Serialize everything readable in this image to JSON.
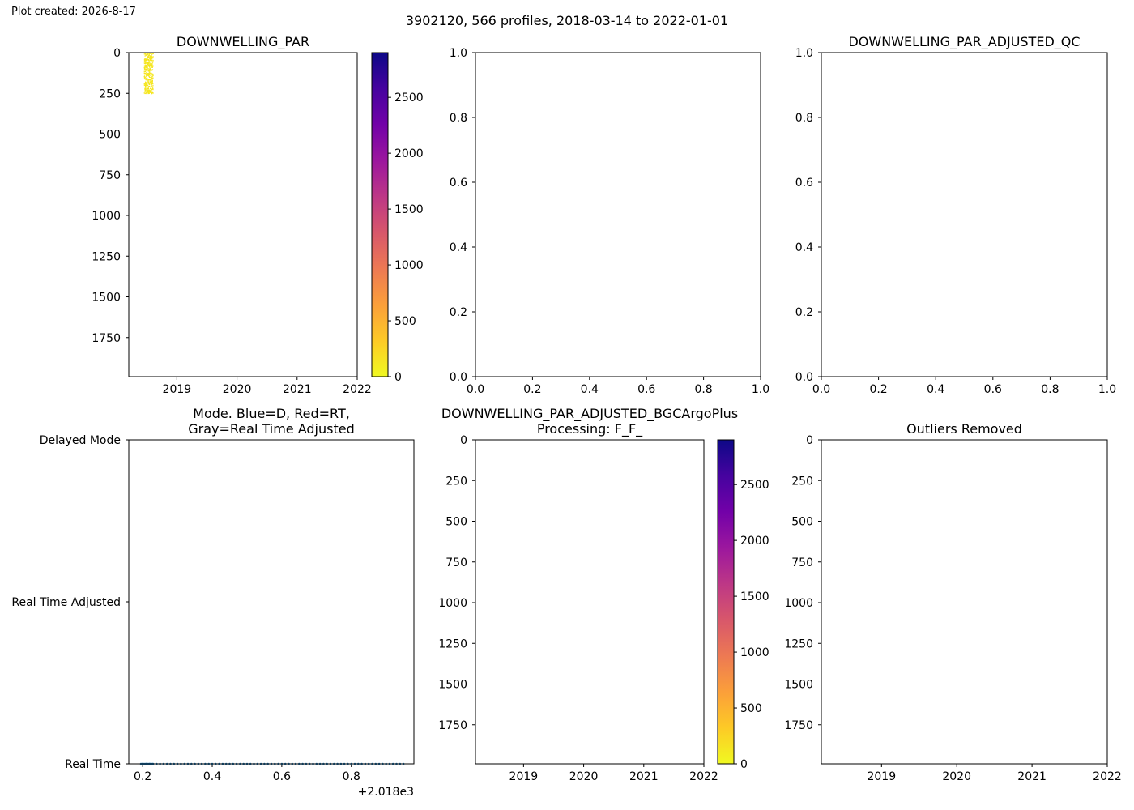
{
  "header": {
    "plot_created": "Plot created: 2026-8-17",
    "suptitle": "3902120, 566 profiles, 2018-03-14 to 2022-01-01"
  },
  "colors": {
    "plasma": [
      "#0d0887",
      "#46039f",
      "#7201a8",
      "#9c179e",
      "#bd3786",
      "#d8576b",
      "#ed7953",
      "#fb9f3a",
      "#fdca26",
      "#f0f921"
    ],
    "mode_series": "#1f77b4",
    "scatter_points": "#f5e61e"
  },
  "chart_data": [
    {
      "id": "p1",
      "type": "scatter",
      "title": "DOWNWELLING_PAR",
      "x_ticks": [
        "2019",
        "2020",
        "2021",
        "2022"
      ],
      "xlim": [
        2018.2,
        2022.0
      ],
      "y_ticks": [
        "0",
        "250",
        "500",
        "750",
        "1000",
        "1250",
        "1500",
        "1750"
      ],
      "ylim": [
        1990,
        0
      ],
      "y_inverted": true,
      "colorbar": {
        "ticks": [
          "0",
          "500",
          "1000",
          "1500",
          "2000",
          "2500"
        ],
        "range": [
          0,
          2900
        ]
      },
      "points_summary": {
        "x_range": [
          2018.45,
          2018.6
        ],
        "pressure_range": [
          0,
          250
        ],
        "value_approx": 0
      }
    },
    {
      "id": "p2",
      "type": "scatter",
      "title": "",
      "x_ticks": [
        "0.0",
        "0.2",
        "0.4",
        "0.6",
        "0.8",
        "1.0"
      ],
      "xlim": [
        0,
        1
      ],
      "y_ticks": [
        "0.0",
        "0.2",
        "0.4",
        "0.6",
        "0.8",
        "1.0"
      ],
      "ylim": [
        0,
        1
      ],
      "empty": true
    },
    {
      "id": "p3",
      "type": "scatter",
      "title": "DOWNWELLING_PAR_ADJUSTED_QC",
      "x_ticks": [
        "0.0",
        "0.2",
        "0.4",
        "0.6",
        "0.8",
        "1.0"
      ],
      "xlim": [
        0,
        1
      ],
      "y_ticks": [
        "0.0",
        "0.2",
        "0.4",
        "0.6",
        "0.8",
        "1.0"
      ],
      "ylim": [
        0,
        1
      ],
      "empty": true
    },
    {
      "id": "p4",
      "type": "scatter",
      "title": [
        "Mode. Blue=D, Red=RT,",
        "Gray=Real Time Adjusted"
      ],
      "x_ticks": [
        "0.2",
        "0.4",
        "0.6",
        "0.8"
      ],
      "xlim": [
        0.16,
        0.98
      ],
      "x_offset_label": "+2.018e3",
      "y_ticks": [
        "Real Time",
        "Real Time Adjusted",
        "Delayed Mode"
      ],
      "ylim": [
        0,
        2
      ],
      "series": [
        {
          "x_range": [
            0.2,
            0.95
          ],
          "x_step": 0.01,
          "y": 0
        }
      ]
    },
    {
      "id": "p5",
      "type": "scatter",
      "title": [
        "DOWNWELLING_PAR_ADJUSTED_BGCArgoPlus",
        "Processing: F_F_"
      ],
      "x_ticks": [
        "2019",
        "2020",
        "2021",
        "2022"
      ],
      "xlim": [
        2018.2,
        2022.0
      ],
      "y_ticks": [
        "0",
        "250",
        "500",
        "750",
        "1000",
        "1250",
        "1500",
        "1750"
      ],
      "ylim": [
        1990,
        0
      ],
      "y_inverted": true,
      "colorbar": {
        "ticks": [
          "0",
          "500",
          "1000",
          "1500",
          "2000",
          "2500"
        ],
        "range": [
          0,
          2900
        ]
      },
      "empty": true
    },
    {
      "id": "p6",
      "type": "scatter",
      "title": "Outliers Removed",
      "x_ticks": [
        "2019",
        "2020",
        "2021",
        "2022"
      ],
      "xlim": [
        2018.2,
        2022.0
      ],
      "y_ticks": [
        "0",
        "250",
        "500",
        "750",
        "1000",
        "1250",
        "1500",
        "1750"
      ],
      "ylim": [
        1990,
        0
      ],
      "y_inverted": true,
      "empty": true
    }
  ]
}
